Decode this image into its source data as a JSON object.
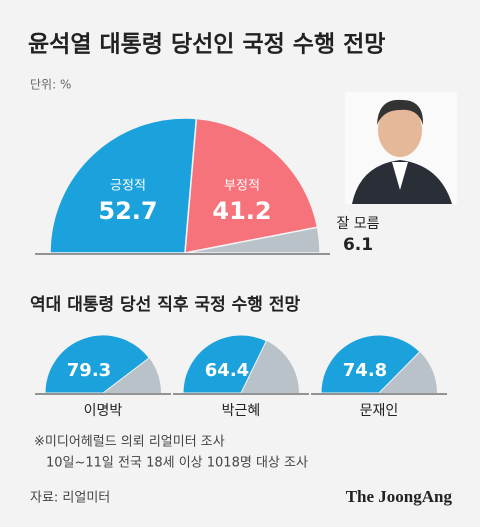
{
  "chart_data": [
    {
      "type": "pie",
      "semicircle": true,
      "title": "윤석열 대통령 당선인 국정 수행 전망",
      "unit": "단위: %",
      "categories": [
        "긍정적",
        "부정적",
        "잘 모름"
      ],
      "values": [
        52.7,
        41.2,
        6.1
      ],
      "colors": [
        "#1ba2dc",
        "#f6737b",
        "#b8c2c8"
      ]
    },
    {
      "type": "pie",
      "semicircle": true,
      "title": "역대 대통령 당선 직후 국정 수행 전망",
      "categories": [
        "이명박",
        "박근혜",
        "문재인"
      ],
      "values": [
        79.3,
        64.4,
        74.8
      ],
      "color": "#1ba2dc",
      "rest_color": "#b8c2c8"
    }
  ],
  "notes": [
    "※미디어헤럴드 의뢰 리얼미터 조사",
    "10일~11일 전국 18세 이상 1018명 대상 조사"
  ],
  "source": "자료: 리얼미터",
  "logo": "The JoongAng"
}
